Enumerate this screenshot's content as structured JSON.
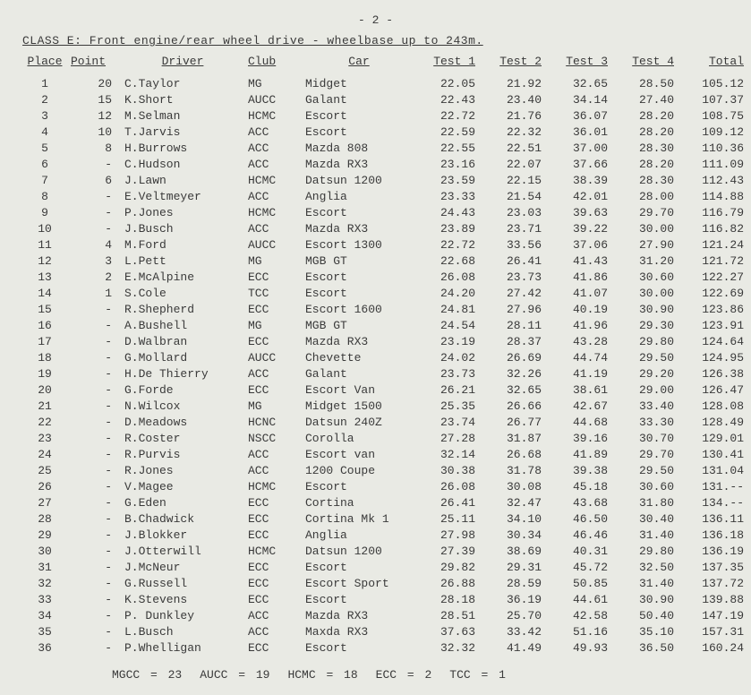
{
  "pageNumber": "- 2 -",
  "classTitle": "CLASS E: Front engine/rear wheel drive - wheelbase up to 243m.",
  "headers": {
    "place": "Place",
    "point": "Point",
    "driver": "Driver",
    "club": "Club",
    "car": "Car",
    "test1": "Test 1",
    "test2": "Test 2",
    "test3": "Test 3",
    "test4": "Test 4",
    "total": "Total"
  },
  "rows": [
    {
      "place": "1",
      "point": "20",
      "driver": "C.Taylor",
      "club": "MG",
      "car": "Midget",
      "t1": "22.05",
      "t2": "21.92",
      "t3": "32.65",
      "t4": "28.50",
      "total": "105.12"
    },
    {
      "place": "2",
      "point": "15",
      "driver": "K.Short",
      "club": "AUCC",
      "car": "Galant",
      "t1": "22.43",
      "t2": "23.40",
      "t3": "34.14",
      "t4": "27.40",
      "total": "107.37"
    },
    {
      "place": "3",
      "point": "12",
      "driver": "M.Selman",
      "club": "HCMC",
      "car": "Escort",
      "t1": "22.72",
      "t2": "21.76",
      "t3": "36.07",
      "t4": "28.20",
      "total": "108.75"
    },
    {
      "place": "4",
      "point": "10",
      "driver": "T.Jarvis",
      "club": "ACC",
      "car": "Escort",
      "t1": "22.59",
      "t2": "22.32",
      "t3": "36.01",
      "t4": "28.20",
      "total": "109.12"
    },
    {
      "place": "5",
      "point": "8",
      "driver": "H.Burrows",
      "club": "ACC",
      "car": "Mazda 808",
      "t1": "22.55",
      "t2": "22.51",
      "t3": "37.00",
      "t4": "28.30",
      "total": "110.36"
    },
    {
      "place": "6",
      "point": "-",
      "driver": "C.Hudson",
      "club": "ACC",
      "car": "Mazda RX3",
      "t1": "23.16",
      "t2": "22.07",
      "t3": "37.66",
      "t4": "28.20",
      "total": "111.09"
    },
    {
      "place": "7",
      "point": "6",
      "driver": "J.Lawn",
      "club": "HCMC",
      "car": "Datsun 1200",
      "t1": "23.59",
      "t2": "22.15",
      "t3": "38.39",
      "t4": "28.30",
      "total": "112.43"
    },
    {
      "place": "8",
      "point": "-",
      "driver": "E.Veltmeyer",
      "club": "ACC",
      "car": "Anglia",
      "t1": "23.33",
      "t2": "21.54",
      "t3": "42.01",
      "t4": "28.00",
      "total": "114.88"
    },
    {
      "place": "9",
      "point": "-",
      "driver": "P.Jones",
      "club": "HCMC",
      "car": "Escort",
      "t1": "24.43",
      "t2": "23.03",
      "t3": "39.63",
      "t4": "29.70",
      "total": "116.79"
    },
    {
      "place": "10",
      "point": "-",
      "driver": "J.Busch",
      "club": "ACC",
      "car": "Mazda RX3",
      "t1": "23.89",
      "t2": "23.71",
      "t3": "39.22",
      "t4": "30.00",
      "total": "116.82"
    },
    {
      "place": "11",
      "point": "4",
      "driver": "M.Ford",
      "club": "AUCC",
      "car": "Escort 1300",
      "t1": "22.72",
      "t2": "33.56",
      "t3": "37.06",
      "t4": "27.90",
      "total": "121.24"
    },
    {
      "place": "12",
      "point": "3",
      "driver": "L.Pett",
      "club": "MG",
      "car": "MGB GT",
      "t1": "22.68",
      "t2": "26.41",
      "t3": "41.43",
      "t4": "31.20",
      "total": "121.72"
    },
    {
      "place": "13",
      "point": "2",
      "driver": "E.McAlpine",
      "club": "ECC",
      "car": "Escort",
      "t1": "26.08",
      "t2": "23.73",
      "t3": "41.86",
      "t4": "30.60",
      "total": "122.27"
    },
    {
      "place": "14",
      "point": "1",
      "driver": "S.Cole",
      "club": "TCC",
      "car": "Escort",
      "t1": "24.20",
      "t2": "27.42",
      "t3": "41.07",
      "t4": "30.00",
      "total": "122.69"
    },
    {
      "place": "15",
      "point": "-",
      "driver": "R.Shepherd",
      "club": "ECC",
      "car": "Escort 1600",
      "t1": "24.81",
      "t2": "27.96",
      "t3": "40.19",
      "t4": "30.90",
      "total": "123.86"
    },
    {
      "place": "16",
      "point": "-",
      "driver": "A.Bushell",
      "club": "MG",
      "car": "MGB GT",
      "t1": "24.54",
      "t2": "28.11",
      "t3": "41.96",
      "t4": "29.30",
      "total": "123.91"
    },
    {
      "place": "17",
      "point": "-",
      "driver": "D.Walbran",
      "club": "ECC",
      "car": "Mazda RX3",
      "t1": "23.19",
      "t2": "28.37",
      "t3": "43.28",
      "t4": "29.80",
      "total": "124.64"
    },
    {
      "place": "18",
      "point": "-",
      "driver": "G.Mollard",
      "club": "AUCC",
      "car": "Chevette",
      "t1": "24.02",
      "t2": "26.69",
      "t3": "44.74",
      "t4": "29.50",
      "total": "124.95"
    },
    {
      "place": "19",
      "point": "-",
      "driver": "H.De Thierry",
      "club": "ACC",
      "car": "Galant",
      "t1": "23.73",
      "t2": "32.26",
      "t3": "41.19",
      "t4": "29.20",
      "total": "126.38"
    },
    {
      "place": "20",
      "point": "-",
      "driver": "G.Forde",
      "club": "ECC",
      "car": "Escort Van",
      "t1": "26.21",
      "t2": "32.65",
      "t3": "38.61",
      "t4": "29.00",
      "total": "126.47"
    },
    {
      "place": "21",
      "point": "-",
      "driver": "N.Wilcox",
      "club": "MG",
      "car": "Midget 1500",
      "t1": "25.35",
      "t2": "26.66",
      "t3": "42.67",
      "t4": "33.40",
      "total": "128.08"
    },
    {
      "place": "22",
      "point": "-",
      "driver": "D.Meadows",
      "club": "HCNC",
      "car": "Datsun 240Z",
      "t1": "23.74",
      "t2": "26.77",
      "t3": "44.68",
      "t4": "33.30",
      "total": "128.49"
    },
    {
      "place": "23",
      "point": "-",
      "driver": "R.Coster",
      "club": "NSCC",
      "car": "Corolla",
      "t1": "27.28",
      "t2": "31.87",
      "t3": "39.16",
      "t4": "30.70",
      "total": "129.01"
    },
    {
      "place": "24",
      "point": "-",
      "driver": "R.Purvis",
      "club": "ACC",
      "car": "Escort van",
      "t1": "32.14",
      "t2": "26.68",
      "t3": "41.89",
      "t4": "29.70",
      "total": "130.41"
    },
    {
      "place": "25",
      "point": "-",
      "driver": "R.Jones",
      "club": "ACC",
      "car": "1200 Coupe",
      "t1": "30.38",
      "t2": "31.78",
      "t3": "39.38",
      "t4": "29.50",
      "total": "131.04"
    },
    {
      "place": "26",
      "point": "-",
      "driver": "V.Magee",
      "club": "HCMC",
      "car": "Escort",
      "t1": "26.08",
      "t2": "30.08",
      "t3": "45.18",
      "t4": "30.60",
      "total": "131.--"
    },
    {
      "place": "27",
      "point": "-",
      "driver": "G.Eden",
      "club": "ECC",
      "car": "Cortina",
      "t1": "26.41",
      "t2": "32.47",
      "t3": "43.68",
      "t4": "31.80",
      "total": "134.--"
    },
    {
      "place": "28",
      "point": "-",
      "driver": "B.Chadwick",
      "club": "ECC",
      "car": "Cortina Mk 1",
      "t1": "25.11",
      "t2": "34.10",
      "t3": "46.50",
      "t4": "30.40",
      "total": "136.11"
    },
    {
      "place": "29",
      "point": "-",
      "driver": "J.Blokker",
      "club": "ECC",
      "car": "Anglia",
      "t1": "27.98",
      "t2": "30.34",
      "t3": "46.46",
      "t4": "31.40",
      "total": "136.18"
    },
    {
      "place": "30",
      "point": "-",
      "driver": "J.Otterwill",
      "club": "HCMC",
      "car": "Datsun 1200",
      "t1": "27.39",
      "t2": "38.69",
      "t3": "40.31",
      "t4": "29.80",
      "total": "136.19"
    },
    {
      "place": "31",
      "point": "-",
      "driver": "J.McNeur",
      "club": "ECC",
      "car": "Escort",
      "t1": "29.82",
      "t2": "29.31",
      "t3": "45.72",
      "t4": "32.50",
      "total": "137.35"
    },
    {
      "place": "32",
      "point": "-",
      "driver": "G.Russell",
      "club": "ECC",
      "car": "Escort Sport",
      "t1": "26.88",
      "t2": "28.59",
      "t3": "50.85",
      "t4": "31.40",
      "total": "137.72"
    },
    {
      "place": "33",
      "point": "-",
      "driver": "K.Stevens",
      "club": "ECC",
      "car": "Escort",
      "t1": "28.18",
      "t2": "36.19",
      "t3": "44.61",
      "t4": "30.90",
      "total": "139.88"
    },
    {
      "place": "34",
      "point": "-",
      "driver": "P. Dunkley",
      "club": "ACC",
      "car": "Mazda RX3",
      "t1": "28.51",
      "t2": "25.70",
      "t3": "42.58",
      "t4": "50.40",
      "total": "147.19"
    },
    {
      "place": "35",
      "point": "-",
      "driver": "L.Busch",
      "club": "ACC",
      "car": "Maxda RX3",
      "t1": "37.63",
      "t2": "33.42",
      "t3": "51.16",
      "t4": "35.10",
      "total": "157.31"
    },
    {
      "place": "36",
      "point": "-",
      "driver": "P.Whelligan",
      "club": "ECC",
      "car": "Escort",
      "t1": "32.32",
      "t2": "41.49",
      "t3": "49.93",
      "t4": "36.50",
      "total": "160.24"
    }
  ],
  "footer": [
    "MGCC = 23",
    "AUCC = 19",
    "HCMC = 18",
    "ECC = 2",
    "TCC = 1"
  ]
}
